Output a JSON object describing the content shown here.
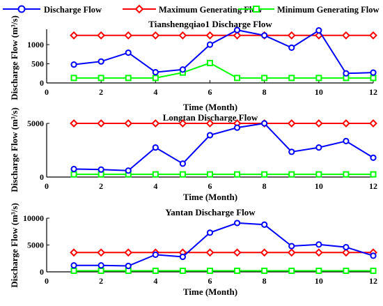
{
  "legend": {
    "items": [
      {
        "label": "Discharge Flow",
        "color": "#0000ff",
        "marker": "circle"
      },
      {
        "label": "Maximum Generating Flow",
        "color": "#ff0000",
        "marker": "diamond"
      },
      {
        "label": "Minimum Generating Flow",
        "color": "#00ff00",
        "marker": "square"
      }
    ],
    "placement": "top"
  },
  "chart_data": [
    {
      "type": "line",
      "title": "Tianshengqiao1 Discharge Flow",
      "xlabel": "Time (Month)",
      "ylabel": "Discharge Flow (m³/s)",
      "xlim": [
        0,
        12
      ],
      "ylim": [
        0,
        1400
      ],
      "xticks": [
        0,
        2,
        4,
        6,
        8,
        10,
        12
      ],
      "yticks": [
        0,
        500,
        1000
      ],
      "grid": false,
      "x": [
        1,
        2,
        3,
        4,
        5,
        6,
        7,
        8,
        9,
        10,
        11,
        12
      ],
      "series": [
        {
          "name": "Discharge Flow",
          "color": "#0000ff",
          "marker": "circle",
          "values": [
            480,
            560,
            790,
            280,
            350,
            1000,
            1380,
            1240,
            920,
            1370,
            250,
            270
          ]
        },
        {
          "name": "Maximum Generating Flow",
          "color": "#ff0000",
          "marker": "diamond",
          "values": [
            1240,
            1240,
            1240,
            1240,
            1240,
            1240,
            1240,
            1240,
            1240,
            1240,
            1240,
            1240
          ]
        },
        {
          "name": "Minimum Generating Flow",
          "color": "#00ff00",
          "marker": "square",
          "values": [
            130,
            130,
            130,
            130,
            270,
            520,
            130,
            130,
            130,
            130,
            130,
            130
          ]
        }
      ]
    },
    {
      "type": "line",
      "title": "Longtan Discharge Flow",
      "xlabel": "Time (Month)",
      "ylabel": "Discharge Flow (m³/s)",
      "xlim": [
        0,
        12
      ],
      "ylim": [
        0,
        5000
      ],
      "xticks": [
        0,
        2,
        4,
        6,
        8,
        10,
        12
      ],
      "yticks": [
        0,
        5000
      ],
      "grid": false,
      "x": [
        1,
        2,
        3,
        4,
        5,
        6,
        7,
        8,
        9,
        10,
        11,
        12
      ],
      "series": [
        {
          "name": "Discharge Flow",
          "color": "#0000ff",
          "marker": "circle",
          "values": [
            750,
            700,
            600,
            2750,
            1250,
            3900,
            4600,
            5000,
            2350,
            2750,
            3350,
            1800
          ]
        },
        {
          "name": "Maximum Generating Flow",
          "color": "#ff0000",
          "marker": "diamond",
          "values": [
            5000,
            5000,
            5000,
            5000,
            5000,
            5000,
            5000,
            5000,
            5000,
            5000,
            5000,
            5000
          ]
        },
        {
          "name": "Minimum Generating Flow",
          "color": "#00ff00",
          "marker": "square",
          "values": [
            250,
            250,
            250,
            250,
            250,
            250,
            250,
            250,
            250,
            250,
            250,
            250
          ]
        }
      ]
    },
    {
      "type": "line",
      "title": "Yantan Discharge Flow",
      "xlabel": "Time (Month)",
      "ylabel": "Discharge Flow (m³/s)",
      "xlim": [
        0,
        12
      ],
      "ylim": [
        0,
        10000
      ],
      "xticks": [
        0,
        2,
        4,
        6,
        8,
        10,
        12
      ],
      "yticks": [
        0,
        5000,
        10000
      ],
      "grid": false,
      "x": [
        1,
        2,
        3,
        4,
        5,
        6,
        7,
        8,
        9,
        10,
        11,
        12
      ],
      "series": [
        {
          "name": "Discharge Flow",
          "color": "#0000ff",
          "marker": "circle",
          "values": [
            1200,
            1200,
            1100,
            3200,
            2800,
            7300,
            9100,
            8800,
            4800,
            5100,
            4600,
            3000
          ]
        },
        {
          "name": "Maximum Generating Flow",
          "color": "#ff0000",
          "marker": "diamond",
          "values": [
            3600,
            3600,
            3600,
            3600,
            3600,
            3600,
            3600,
            3600,
            3600,
            3600,
            3600,
            3600
          ]
        },
        {
          "name": "Minimum Generating Flow",
          "color": "#00ff00",
          "marker": "square",
          "values": [
            200,
            200,
            200,
            200,
            200,
            200,
            200,
            200,
            200,
            200,
            200,
            200
          ]
        }
      ]
    }
  ]
}
